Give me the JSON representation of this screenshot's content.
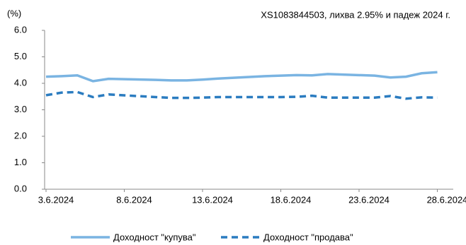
{
  "chart_data": {
    "type": "line",
    "title": "XS1083844503, лихва 2.95% и падеж 2024 г.",
    "y_label": "(%)",
    "x": [
      "3.6.2024",
      "4.6.2024",
      "5.6.2024",
      "6.6.2024",
      "7.6.2024",
      "10.6.2024",
      "11.6.2024",
      "12.6.2024",
      "13.6.2024",
      "14.6.2024",
      "17.6.2024",
      "18.6.2024",
      "19.6.2024",
      "20.6.2024",
      "21.6.2024",
      "24.6.2024",
      "25.6.2024",
      "26.6.2024",
      "27.6.2024",
      "28.6.2024"
    ],
    "xticks": [
      "3.6.2024",
      "8.6.2024",
      "13.6.2024",
      "18.6.2024",
      "23.6.2024",
      "28.6.2024"
    ],
    "series": [
      {
        "name": "Доходност \"купува\"",
        "color": "#7ab4e2",
        "dash": false,
        "values": [
          4.25,
          4.27,
          4.3,
          4.08,
          4.17,
          4.13,
          4.11,
          4.11,
          4.14,
          4.18,
          4.27,
          4.29,
          4.31,
          4.3,
          4.35,
          4.29,
          4.22,
          4.25,
          4.38,
          4.42
        ]
      },
      {
        "name": "Доходност \"продава\"",
        "color": "#2b7cc0",
        "dash": true,
        "values": [
          3.55,
          3.65,
          3.67,
          3.48,
          3.58,
          3.48,
          3.45,
          3.45,
          3.46,
          3.48,
          3.48,
          3.48,
          3.49,
          3.53,
          3.46,
          3.46,
          3.52,
          3.42,
          3.47,
          3.46
        ]
      }
    ],
    "ylim": [
      0,
      6
    ],
    "yticks": [
      {
        "value": 0,
        "label": "0.0"
      },
      {
        "value": 1,
        "label": "1.0"
      },
      {
        "value": 2,
        "label": "2.0"
      },
      {
        "value": 3,
        "label": "3.0"
      },
      {
        "value": 4,
        "label": "4.0"
      },
      {
        "value": 5,
        "label": "5.0"
      },
      {
        "value": 6,
        "label": "6.0"
      }
    ],
    "legend": "bottom"
  }
}
